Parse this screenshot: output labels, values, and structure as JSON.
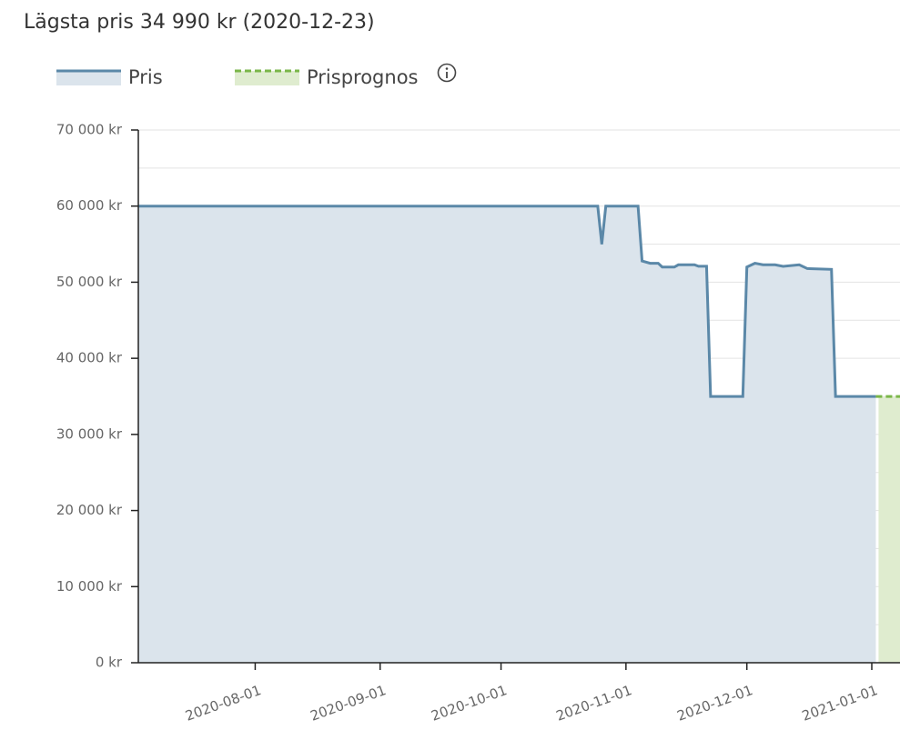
{
  "chart_data": {
    "type": "line",
    "title": "Lägsta pris 34 990 kr (2020-12-23)",
    "series": [
      {
        "name": "Pris",
        "color": "#5b88a8",
        "fill": "#dbe4ec",
        "style": "solid",
        "x": [
          "2020-07-03",
          "2020-10-25",
          "2020-10-26",
          "2020-10-27",
          "2020-11-04",
          "2020-11-05",
          "2020-11-07",
          "2020-11-09",
          "2020-11-10",
          "2020-11-13",
          "2020-11-14",
          "2020-11-18",
          "2020-11-19",
          "2020-11-21",
          "2020-11-22",
          "2020-11-30",
          "2020-12-01",
          "2020-12-03",
          "2020-12-05",
          "2020-12-08",
          "2020-12-10",
          "2020-12-14",
          "2020-12-16",
          "2020-12-22",
          "2020-12-23",
          "2021-01-02"
        ],
        "values": [
          59990,
          59990,
          54990,
          59990,
          59990,
          52790,
          52490,
          52490,
          51990,
          51990,
          52290,
          52290,
          52090,
          52090,
          34990,
          34990,
          51990,
          52490,
          52290,
          52290,
          52090,
          52290,
          51790,
          51690,
          34990,
          34990
        ]
      },
      {
        "name": "Prisprognos",
        "color": "#7ab648",
        "fill": "#dfeccf",
        "style": "dashed",
        "x": [
          "2021-01-02",
          "2021-01-08"
        ],
        "values": [
          34990,
          34990
        ]
      }
    ],
    "xlim": [
      "2020-07-03",
      "2021-01-08"
    ],
    "xticks": [
      "2020-08-01",
      "2020-09-01",
      "2020-10-01",
      "2020-11-01",
      "2020-12-01",
      "2021-01-01"
    ],
    "ylim": [
      0,
      70000
    ],
    "yticks": [
      {
        "value": 0,
        "label": "0 kr"
      },
      {
        "value": 10000,
        "label": "10 000 kr"
      },
      {
        "value": 20000,
        "label": "20 000 kr"
      },
      {
        "value": 30000,
        "label": "30 000 kr"
      },
      {
        "value": 40000,
        "label": "40 000 kr"
      },
      {
        "value": 50000,
        "label": "50 000 kr"
      },
      {
        "value": 60000,
        "label": "60 000 kr"
      },
      {
        "value": 70000,
        "label": "70 000 kr"
      }
    ],
    "minor_yticks": [
      5000,
      15000,
      25000,
      35000,
      45000,
      55000,
      65000
    ],
    "grid": true
  }
}
